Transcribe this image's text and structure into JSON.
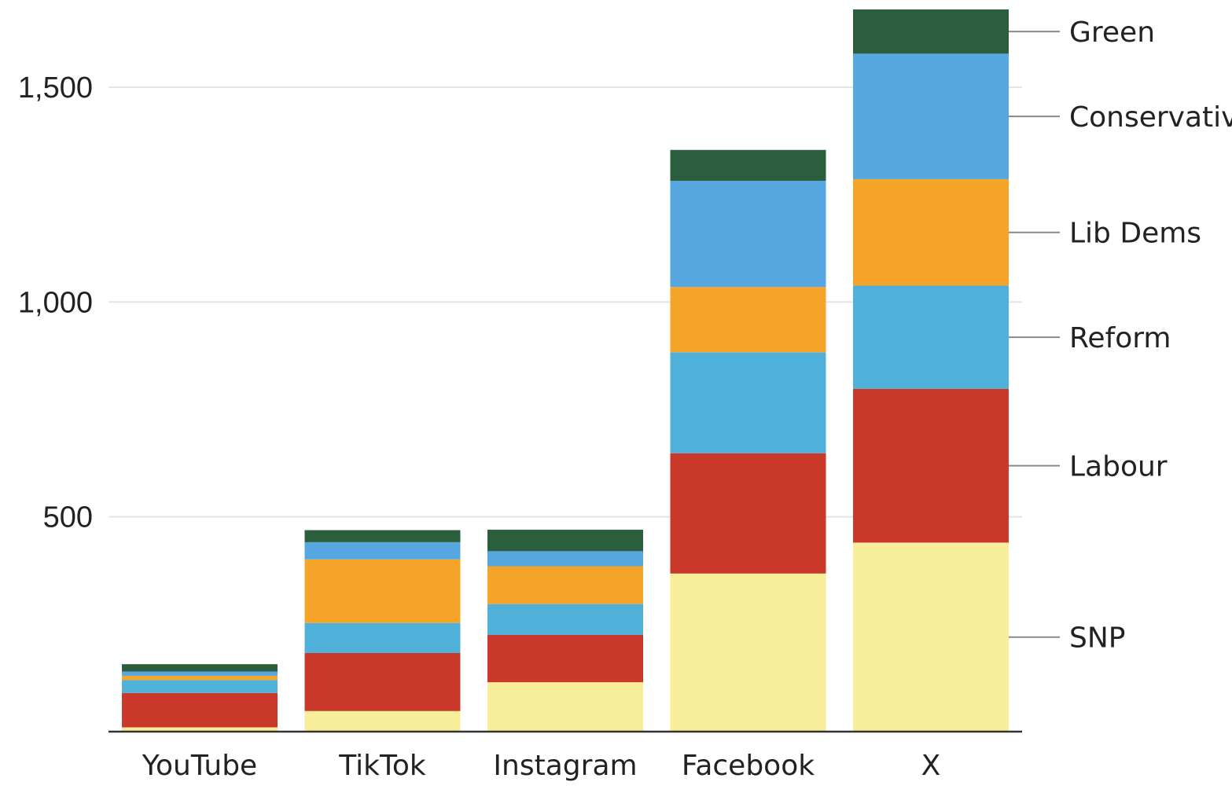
{
  "chart_data": {
    "type": "bar",
    "stacked": true,
    "categories": [
      "YouTube",
      "TikTok",
      "Instagram",
      "Facebook",
      "X"
    ],
    "ylim": [
      0,
      1680
    ],
    "yticks": [
      500,
      1000,
      1500
    ],
    "ytick_labels": [
      "500",
      "1,000",
      "1,500"
    ],
    "grid": true,
    "legend": "right, labels beside the last bar",
    "series": [
      {
        "name": "SNP",
        "color": "#f8ee9a",
        "values": [
          10,
          48,
          115,
          368,
          440
        ]
      },
      {
        "name": "Labour",
        "color": "#c9382a",
        "values": [
          80,
          135,
          110,
          280,
          358
        ]
      },
      {
        "name": "Reform",
        "color": "#4fb0d9",
        "values": [
          30,
          70,
          72,
          235,
          240
        ]
      },
      {
        "name": "Lib Dems",
        "color": "#f4a429",
        "values": [
          10,
          148,
          88,
          152,
          248
        ]
      },
      {
        "name": "Conservatives",
        "color": "#56a7e0",
        "values": [
          10,
          40,
          35,
          247,
          292
        ]
      },
      {
        "name": "Green",
        "color": "#2b5e3d",
        "values": [
          17,
          28,
          50,
          72,
          103
        ]
      }
    ],
    "legend_labels": [
      "Green",
      "Conservativ",
      "Lib Dems",
      "Reform",
      "Labour",
      "SNP"
    ]
  }
}
